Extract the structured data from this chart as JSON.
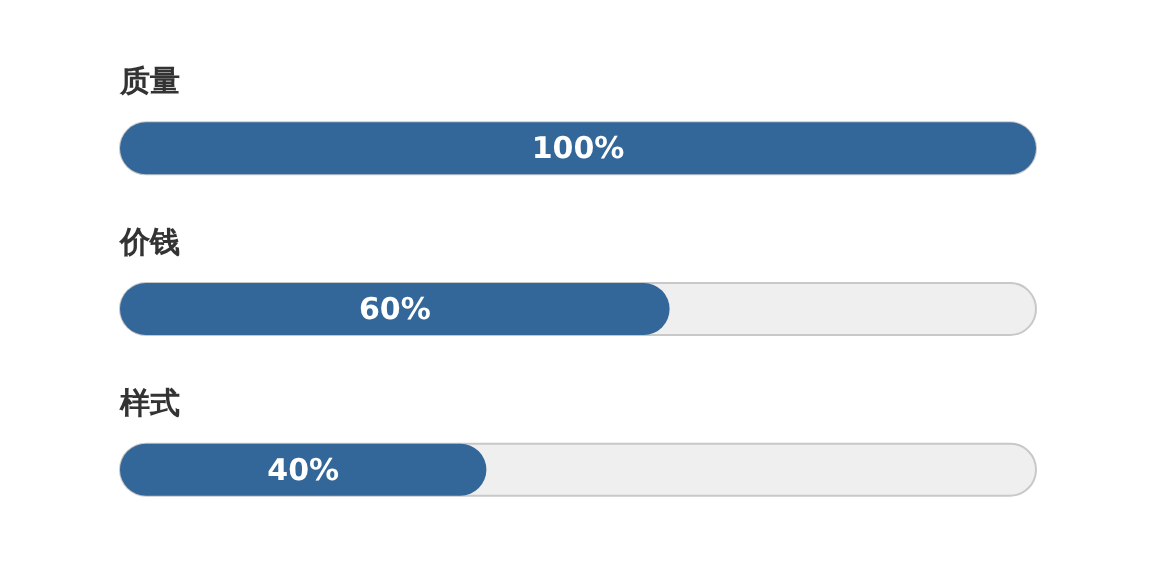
{
  "chart_data": {
    "type": "bar",
    "orientation": "horizontal",
    "categories": [
      "质量",
      "价钱",
      "样式"
    ],
    "values": [
      100,
      60,
      40
    ],
    "value_labels": [
      "100%",
      "60%",
      "40%"
    ],
    "color": "#336699",
    "xlim": [
      0,
      100
    ]
  }
}
